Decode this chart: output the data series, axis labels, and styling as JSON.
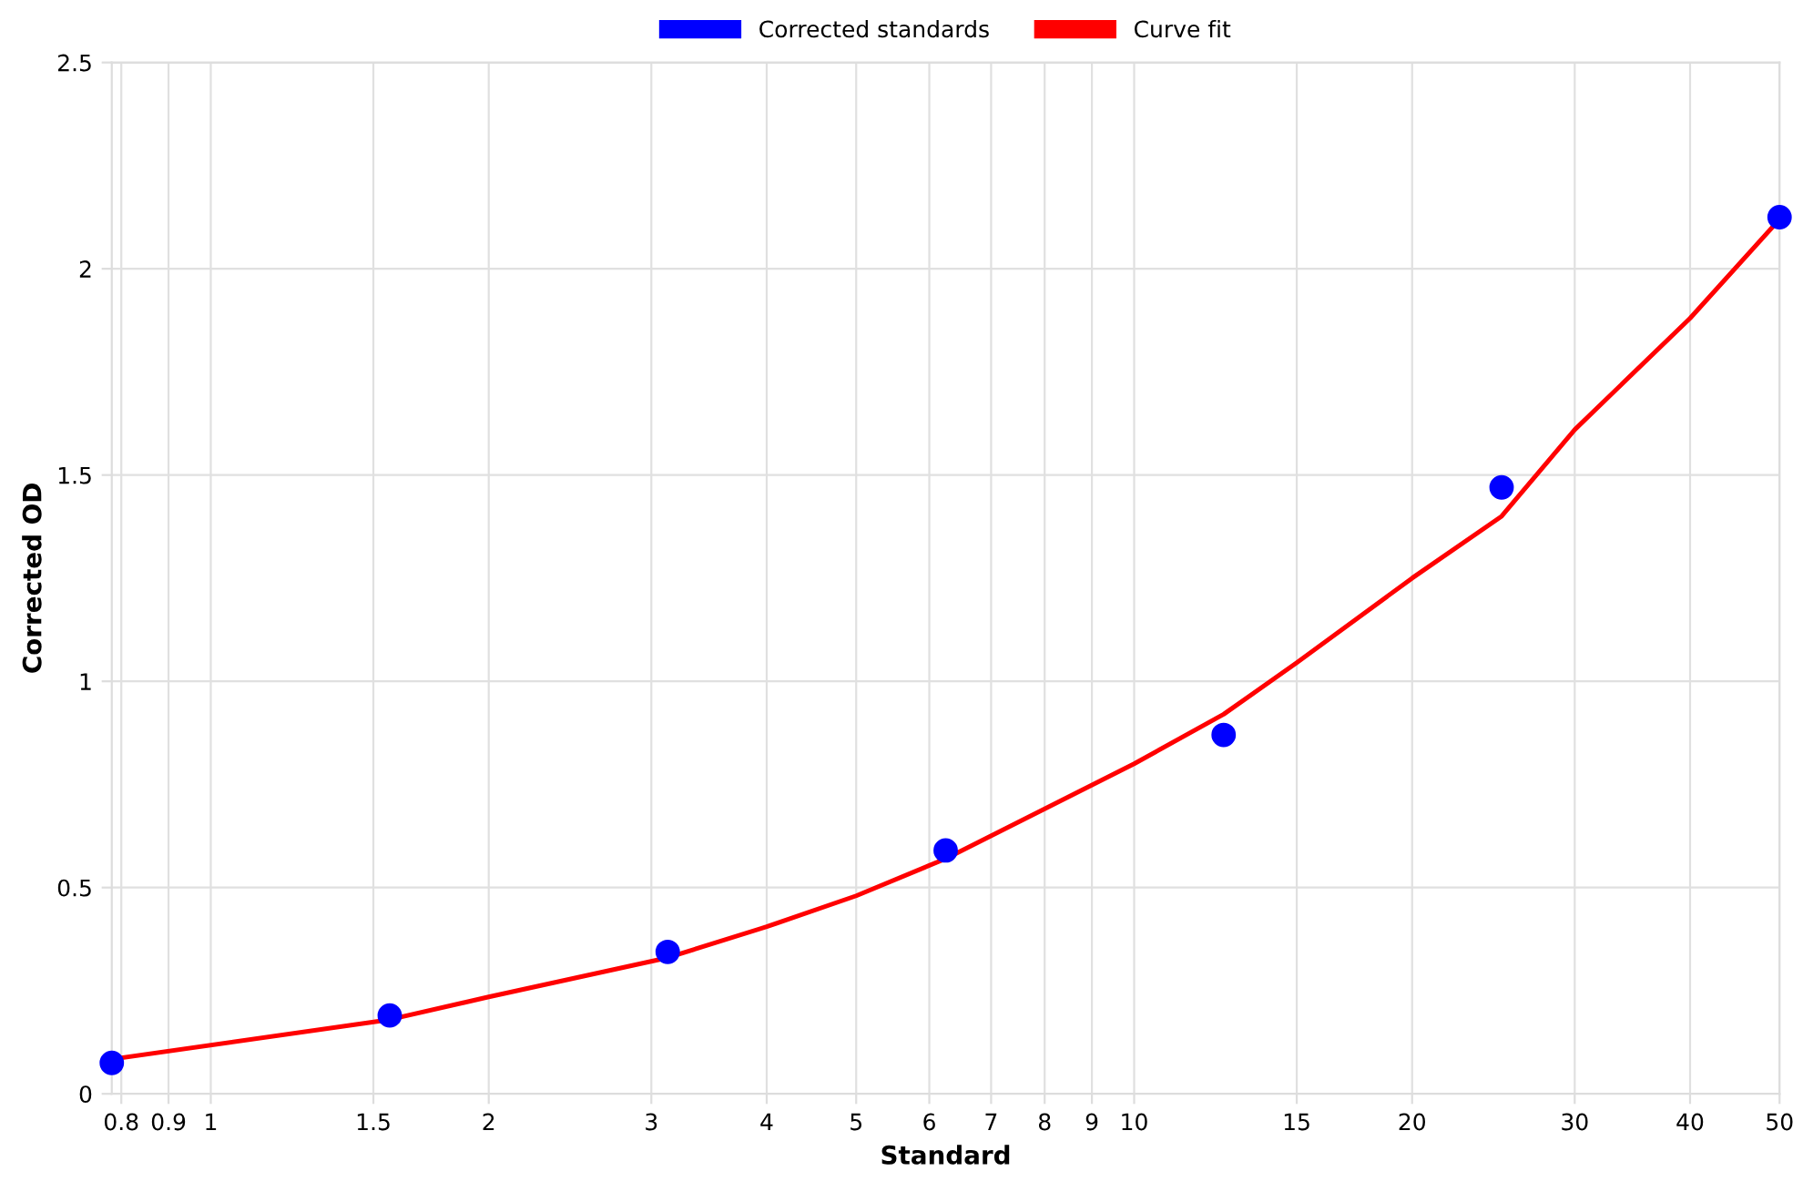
{
  "chart_data": {
    "type": "scatter",
    "xlabel": "Standard",
    "ylabel": "Corrected OD",
    "log": "x",
    "series": [
      {
        "name": "Corrected standards",
        "color": "#0000ff",
        "marker": "circle",
        "x": [
          0.78125,
          1.5625,
          3.125,
          6.25,
          12.5,
          25,
          50
        ],
        "values": [
          0.075,
          0.19,
          0.344,
          0.59,
          0.87,
          1.47,
          2.125
        ]
      },
      {
        "name": "Curve fit",
        "type": "line",
        "color": "#ff0000",
        "marker": "none",
        "line_style": "solid",
        "x": [
          0.78125,
          1.5625,
          2,
          3.125,
          4,
          5,
          6.25,
          10,
          12.5,
          15,
          20,
          25,
          30,
          40,
          50
        ],
        "values": [
          0.084,
          0.18,
          0.235,
          0.33,
          0.405,
          0.48,
          0.57,
          0.8,
          0.92,
          1.045,
          1.25,
          1.4,
          1.61,
          1.88,
          2.12
        ]
      }
    ],
    "xlim": [
      0.78125,
      50
    ],
    "xticks": [
      0.8,
      0.9,
      1,
      1.5,
      2,
      3,
      4,
      5,
      6,
      7,
      8,
      9,
      10,
      15,
      20,
      30,
      40,
      50
    ],
    "ylim": [
      0,
      2.5
    ],
    "yticks": [
      0,
      0.5,
      1,
      1.5,
      2,
      2.5
    ],
    "grid": true,
    "legend": "top"
  }
}
